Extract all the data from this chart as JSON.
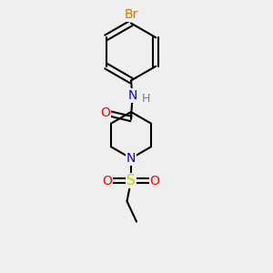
{
  "background_color": "#efefef",
  "bond_color": "#000000",
  "bond_width": 1.5,
  "colors": {
    "Br": "#cc7700",
    "N": "#0000ff",
    "O": "#ff0000",
    "S": "#cccc00",
    "H": "#4a9090",
    "C": "#000000"
  },
  "font_size": 9
}
